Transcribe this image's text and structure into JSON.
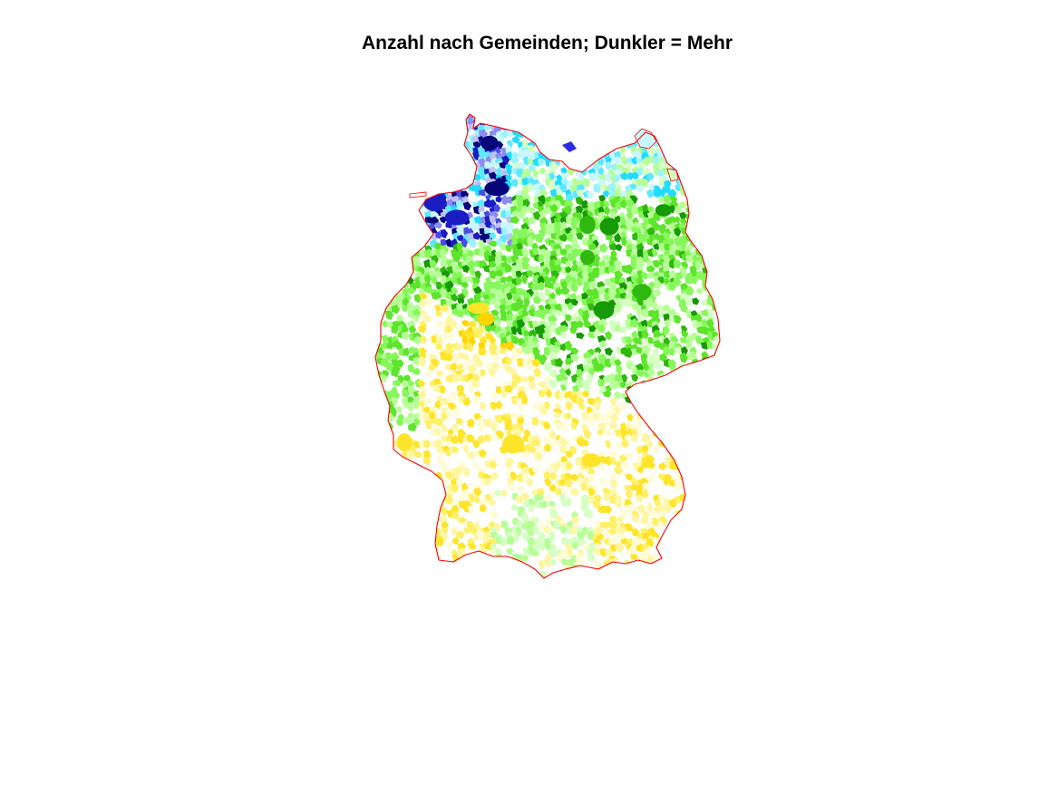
{
  "title": "Anzahl nach Gemeinden; Dunkler = Mehr",
  "map": {
    "region": "Germany",
    "unit": "municipalities",
    "encoding": "color hue by region, darker shade = higher count",
    "border_color": "#ff0000",
    "background_color": "#ffffff",
    "palettes": {
      "blue": [
        "#bfc0f5",
        "#8a8cf0",
        "#4a4ce6",
        "#1a1cc4",
        "#06067a"
      ],
      "cyan": [
        "#c8f7ff",
        "#9cf2ff",
        "#5ee8ff",
        "#22dcff"
      ],
      "green": [
        "#d6ffc4",
        "#b6ff96",
        "#86f75a",
        "#5de52b",
        "#2fb80f",
        "#169a06"
      ],
      "yellow": [
        "#fffbd6",
        "#fff6a2",
        "#fff066",
        "#ffe52a",
        "#ffd400"
      ]
    }
  }
}
